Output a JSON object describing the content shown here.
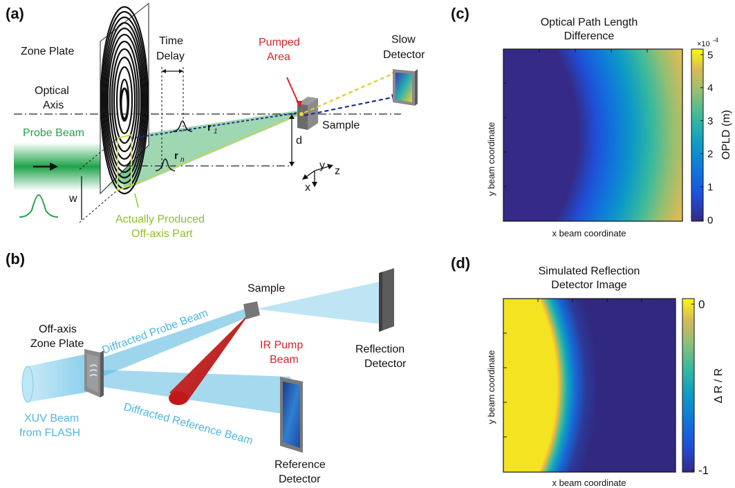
{
  "panels": {
    "a": "(a)",
    "b": "(b)",
    "c": "(c)",
    "d": "(d)"
  },
  "panel_a": {
    "zone_plate": "Zone Plate",
    "time_delay": [
      "Time",
      "Delay"
    ],
    "pumped_area": [
      "Pumped",
      "Area"
    ],
    "slow_detector": [
      "Slow",
      "Detector"
    ],
    "optical_axis": [
      "Optical",
      "Axis"
    ],
    "probe_beam": "Probe Beam",
    "sample": "Sample",
    "d": "d",
    "w": "w",
    "r1": "r",
    "r1_sub": "1",
    "rn": "r",
    "rn_sub": "n",
    "axis_y": "y",
    "axis_z": "z",
    "axis_x": "x",
    "off_axis_part": [
      "Actually Produced",
      "Off-axis Part"
    ]
  },
  "panel_b": {
    "sample": "Sample",
    "off_axis_zone_plate": [
      "Off-axis",
      "Zone Plate"
    ],
    "diffracted_probe": "Diffracted Probe Beam",
    "ir_pump": [
      "IR Pump",
      "Beam"
    ],
    "reflection_detector": [
      "Reflection",
      "Detector"
    ],
    "xuv_beam": [
      "XUV Beam",
      "from FLASH"
    ],
    "diffracted_reference": "Diffracted Reference Beam",
    "reference_detector": [
      "Reference",
      "Detector"
    ]
  },
  "colors": {
    "green": "#22a24a",
    "lime": "#8dbf2a",
    "red": "#d8232a",
    "xuv_blue": "#4fb6dd"
  },
  "chart_data": [
    {
      "type": "heatmap",
      "title": "Optical Path Length Difference",
      "xlabel": "x beam coordinate",
      "ylabel": "y beam coordinate",
      "colorbar_label": "OPLD (m)",
      "colorbar_multiplier": "×10",
      "colorbar_exponent": "-4",
      "colorbar_ticks": [
        "5",
        "4",
        "3",
        "2",
        "1",
        "0"
      ],
      "colorbar_range": [
        0,
        5
      ],
      "colormap": "parula",
      "gradient_direction": "left-to-right, curved"
    },
    {
      "type": "heatmap",
      "title": "Simulated Reflection Detector Image",
      "xlabel": "x beam coordinate",
      "ylabel": "y beam coordinate",
      "colorbar_label": "Δ R / R",
      "colorbar_ticks": [
        "0",
        "-1"
      ],
      "colorbar_range": [
        -1,
        0
      ],
      "colormap": "parula",
      "feature": "curved boundary between 0 (left) and -1 (right)"
    }
  ]
}
